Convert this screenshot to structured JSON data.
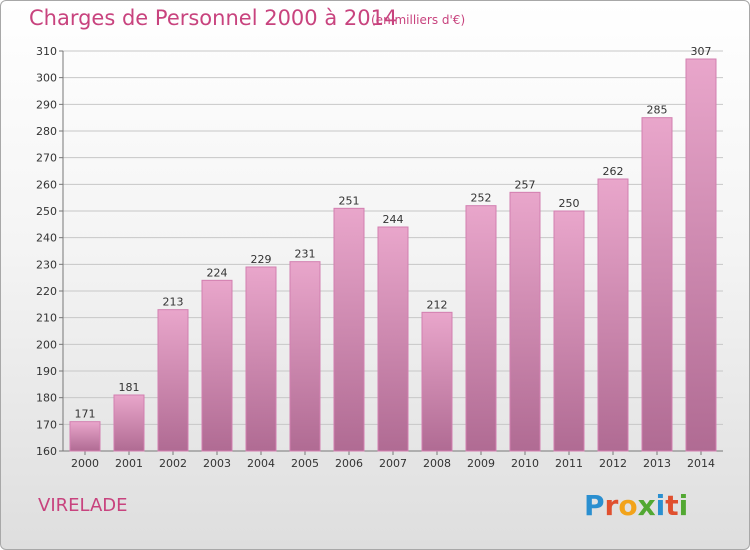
{
  "header": {
    "title": "Charges de Personnel 2000 à 2014",
    "subtitle": "(en milliers d'€)"
  },
  "footer": {
    "place": "VIRELADE",
    "logo_text": "Proxiti",
    "logo_letters": [
      {
        "char": "P",
        "color": "#2a8fd0"
      },
      {
        "char": "r",
        "color": "#e0502f"
      },
      {
        "char": "o",
        "color": "#f2a31a"
      },
      {
        "char": "x",
        "color": "#52a832"
      },
      {
        "char": "i",
        "color": "#2a8fd0"
      },
      {
        "char": "t",
        "color": "#e0502f"
      },
      {
        "char": "i",
        "color": "#52a832"
      }
    ]
  },
  "colors": {
    "bar_top": "#e9a6cb",
    "bar_bottom": "#b06b93",
    "bar_edge": "#d27fb0",
    "grid": "#c7c7c7",
    "accent": "#c8437e"
  },
  "chart_data": {
    "type": "bar",
    "categories": [
      "2000",
      "2001",
      "2002",
      "2003",
      "2004",
      "2005",
      "2006",
      "2007",
      "2008",
      "2009",
      "2010",
      "2011",
      "2012",
      "2013",
      "2014"
    ],
    "values": [
      171,
      181,
      213,
      224,
      229,
      231,
      251,
      244,
      212,
      252,
      257,
      250,
      262,
      285,
      307
    ],
    "title": "Charges de Personnel 2000 à 2014",
    "xlabel": "",
    "ylabel": "",
    "ylim": [
      160,
      310
    ],
    "yticks": [
      160,
      170,
      180,
      190,
      200,
      210,
      220,
      230,
      240,
      250,
      260,
      270,
      280,
      290,
      300,
      310
    ],
    "grid": true,
    "legend": "none",
    "data_labels": true
  }
}
